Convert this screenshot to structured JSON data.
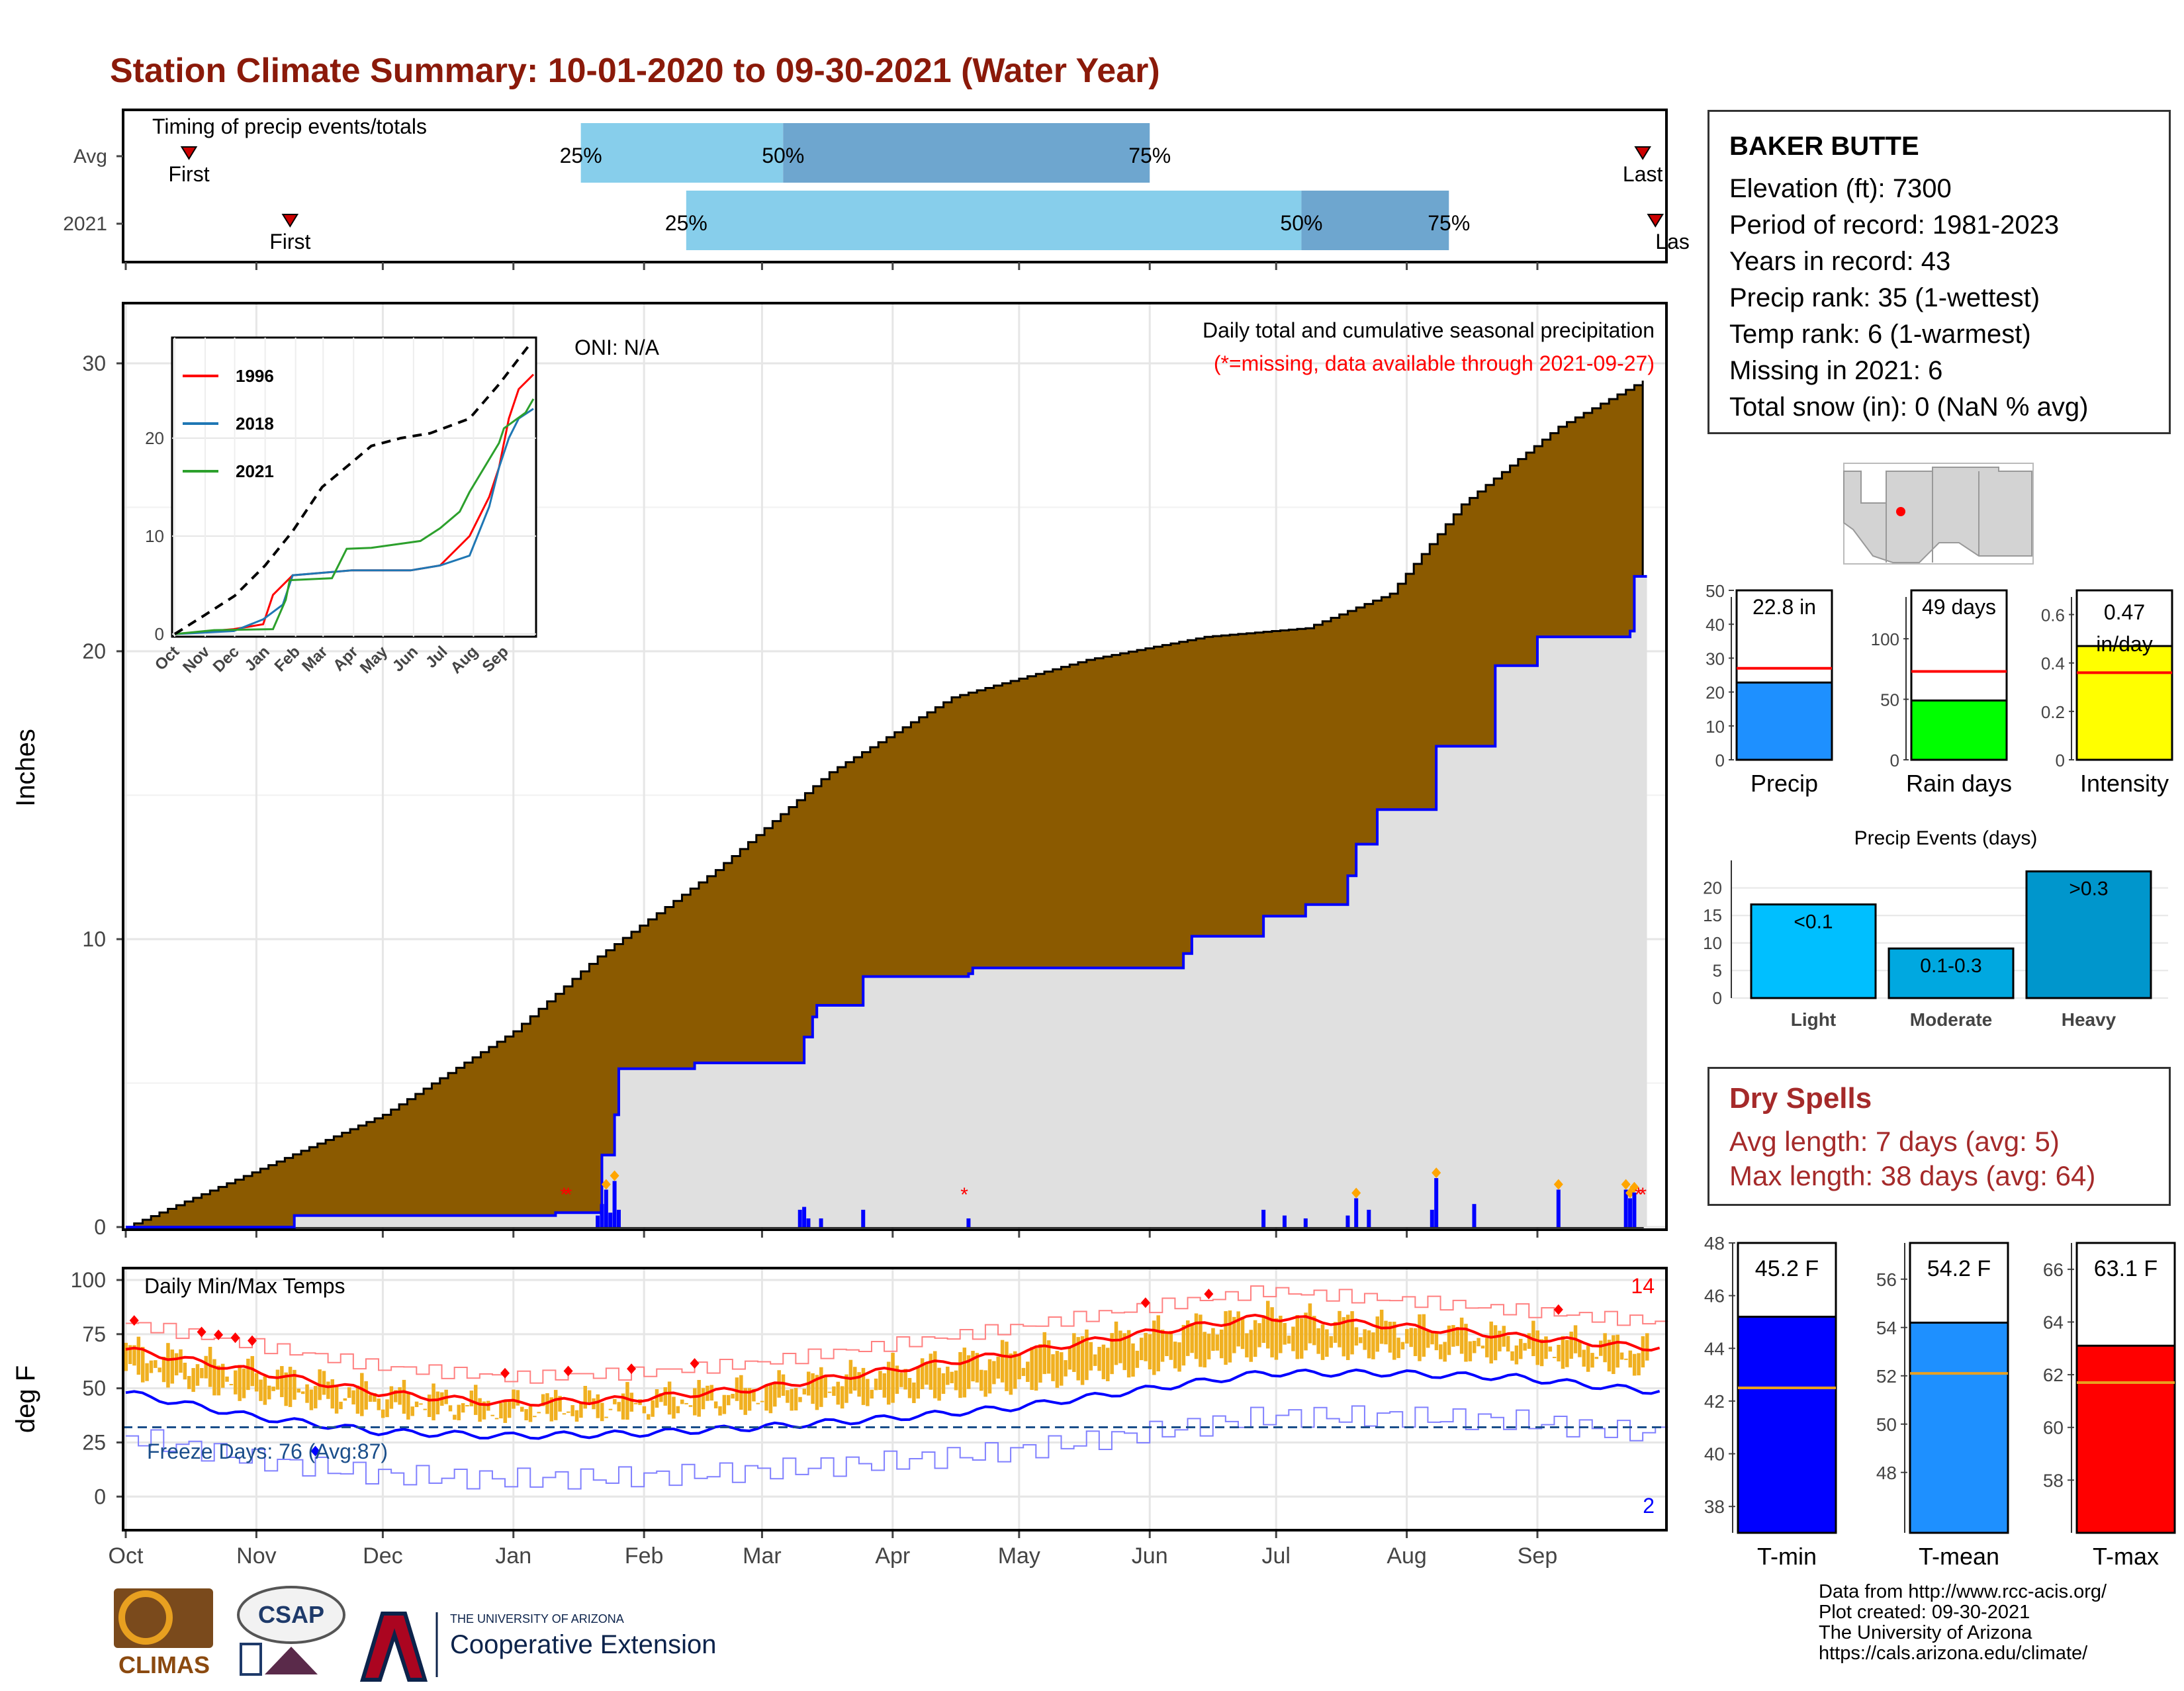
{
  "title": "Station Climate Summary: 10-01-2020 to 09-30-2021 (Water Year)",
  "station": {
    "name": "BAKER BUTTE",
    "lines": [
      "Elevation (ft): 7300",
      "Period of record: 1981-2023",
      "Years in record: 43",
      "Precip rank: 35 (1-wettest)",
      "Temp rank: 6 (1-warmest)",
      "Missing in 2021: 6",
      "Total snow (in): 0 (NaN % avg)"
    ]
  },
  "dry_spells": {
    "title": "Dry Spells",
    "avg": "Avg length: 7 days (avg: 5)",
    "max": "Max length: 38 days (avg: 64)"
  },
  "credits": [
    "Data from http://www.rcc-acis.org/",
    "Plot created: 09-30-2021",
    "The University of Arizona",
    "https://cals.arizona.edu/climate/"
  ],
  "logos": {
    "climas": "CLIMAS",
    "csap": "CSAP",
    "ua_small": "THE UNIVERSITY OF ARIZONA",
    "ua_big": "Cooperative Extension"
  },
  "colors": {
    "title": "#8b1a0a",
    "cum_fill": "#8b5a00",
    "avg_fill": "#e0e0e0",
    "daily_bar": "#0000ff",
    "light_blue": "#87ceeb",
    "steel": "#6ea6cf",
    "temp_bar": "#f0b020",
    "tmax_line": "#ff0000",
    "tmin_line": "#0000ff",
    "inset_1996": "#ff0000",
    "inset_2018": "#1f77b4",
    "inset_2021": "#2ca02c"
  },
  "chart_data": [
    {
      "id": "timing",
      "type": "bar",
      "title": "Timing of precip events/totals",
      "categories": [
        "Avg",
        "2021"
      ],
      "series": [
        {
          "name": "Avg",
          "first": "10-16",
          "q25": "01-17",
          "q50": "03-06",
          "q75": "06-01",
          "last": "09-26"
        },
        {
          "name": "2021",
          "first": "11-09",
          "q25": "02-11",
          "q50": "07-07",
          "q75": "08-11",
          "last": "09-29"
        }
      ],
      "labels": {
        "first": "First",
        "last": "Last",
        "last_2021": "Las",
        "q25": "25%",
        "q50": "50%",
        "q75": "75%"
      }
    },
    {
      "id": "precip",
      "type": "area",
      "title": "Daily total and cumulative seasonal precipitation",
      "subtitle": "(*=missing, data available through 2021-09-27)",
      "annotation": "ONI: N/A",
      "ylabel": "Inches",
      "ylim": [
        0,
        32
      ],
      "yticks": [
        0,
        10,
        20,
        30
      ],
      "xticks": [
        "Oct",
        "Nov",
        "Dec",
        "Jan",
        "Feb",
        "Mar",
        "Apr",
        "May",
        "Jun",
        "Jul",
        "Aug",
        "Sep"
      ],
      "cumulative_avg": {
        "x": [
          0,
          30,
          61,
          92,
          112,
          140,
          167,
          196,
          228,
          256,
          280,
          300,
          317,
          340,
          360
        ],
        "y": [
          0,
          1.9,
          3.9,
          6.8,
          9.4,
          12.4,
          15.8,
          18.4,
          19.7,
          20.5,
          20.8,
          22.0,
          25.1,
          27.8,
          29.4
        ]
      },
      "cumulative_2021": {
        "x": [
          0,
          39,
          40,
          102,
          112,
          113,
          116,
          117,
          135,
          160,
          161,
          163,
          164,
          175,
          200,
          201,
          230,
          251,
          253,
          260,
          270,
          280,
          290,
          292,
          297,
          310,
          311,
          325,
          330,
          335,
          357,
          358,
          361
        ],
        "y": [
          0,
          0,
          0.4,
          0.5,
          0.5,
          2.5,
          3.9,
          5.5,
          5.7,
          5.7,
          6.6,
          7.3,
          7.7,
          8.7,
          8.8,
          9.0,
          9.0,
          9.5,
          10.1,
          10.1,
          10.8,
          11.2,
          12.2,
          13.3,
          14.5,
          14.5,
          16.7,
          19.5,
          19.5,
          20.5,
          20.7,
          22.6,
          22.6
        ]
      },
      "daily_bars": {
        "x": [
          112,
          113,
          114,
          115,
          116,
          117,
          160,
          161,
          162,
          165,
          175,
          200,
          270,
          275,
          280,
          290,
          292,
          295,
          310,
          311,
          320,
          340,
          356,
          357,
          358
        ],
        "y": [
          0.4,
          0.8,
          1.3,
          0.5,
          1.6,
          0.6,
          0.6,
          0.7,
          0.3,
          0.3,
          0.6,
          0.3,
          0.6,
          0.4,
          0.3,
          0.4,
          1.0,
          0.6,
          0.6,
          1.7,
          0.8,
          1.3,
          1.3,
          1.0,
          1.2
        ]
      },
      "missing_x": [
        104,
        105,
        199,
        359,
        360
      ]
    },
    {
      "id": "inset",
      "type": "line",
      "xticks": [
        "Oct",
        "Nov",
        "Dec",
        "Jan",
        "Feb",
        "Mar",
        "Apr",
        "May",
        "Jun",
        "Jul",
        "Aug",
        "Sep"
      ],
      "yticks": [
        0,
        10,
        20
      ],
      "ylim": [
        0,
        30
      ],
      "series": [
        {
          "name": "1996",
          "x": [
            0,
            60,
            90,
            100,
            120,
            180,
            240,
            270,
            300,
            320,
            330,
            340,
            350,
            365
          ],
          "y": [
            0,
            0.5,
            1,
            4,
            6,
            6.5,
            6.5,
            7,
            10,
            14,
            17,
            22,
            25,
            26.5
          ]
        },
        {
          "name": "2018",
          "x": [
            0,
            60,
            90,
            110,
            120,
            180,
            240,
            270,
            300,
            320,
            330,
            340,
            350,
            365
          ],
          "y": [
            0,
            0.3,
            1.5,
            3,
            6,
            6.5,
            6.5,
            7,
            8,
            13,
            17,
            20,
            22,
            23
          ]
        },
        {
          "name": "2021",
          "x": [
            0,
            40,
            100,
            113,
            117,
            160,
            175,
            200,
            250,
            270,
            290,
            300,
            330,
            335,
            357,
            365
          ],
          "y": [
            0,
            0.4,
            0.5,
            3.5,
            5.5,
            5.7,
            8.7,
            8.8,
            9.5,
            10.8,
            12.5,
            14.5,
            19.5,
            21,
            22.6,
            24
          ]
        },
        {
          "name": "avg",
          "x": [
            0,
            30,
            61,
            92,
            120,
            150,
            180,
            200,
            230,
            260,
            300,
            330,
            360
          ],
          "y": [
            0,
            1.9,
            3.9,
            7,
            10.5,
            15,
            17.5,
            19.2,
            20,
            20.5,
            22,
            25.5,
            29.4
          ]
        }
      ]
    },
    {
      "id": "temps",
      "type": "line",
      "title": "Daily Min/Max Temps",
      "ylabel": "deg F",
      "ylim": [
        -10,
        100
      ],
      "yticks": [
        0,
        25,
        50,
        75,
        100
      ],
      "xticks": [
        "Oct",
        "Nov",
        "Dec",
        "Jan",
        "Feb",
        "Mar",
        "Apr",
        "May",
        "Jun",
        "Jul",
        "Aug",
        "Sep"
      ],
      "avg_tmax": {
        "x": [
          0,
          30,
          60,
          90,
          120,
          150,
          180,
          210,
          240,
          270,
          300,
          330,
          360
        ],
        "y": [
          68,
          58,
          48,
          43,
          45,
          50,
          58,
          66,
          75,
          83,
          79,
          74,
          69
        ]
      },
      "avg_tmin": {
        "x": [
          0,
          30,
          60,
          90,
          120,
          150,
          180,
          210,
          240,
          270,
          300,
          330,
          360
        ],
        "y": [
          48,
          37,
          30,
          28,
          29,
          32,
          36,
          41,
          49,
          57,
          57,
          55,
          49
        ]
      },
      "freeze_line": 32,
      "freeze_label": "Freeze Days: 76 (Avg:87)",
      "record_high_count": "14",
      "record_low_count": "2"
    },
    {
      "id": "precip_stats",
      "type": "bar",
      "panels": [
        {
          "label": "Precip",
          "value": 22.8,
          "avg": 27,
          "text": "22.8 in",
          "ymax": 50,
          "yticks": [
            0,
            10,
            20,
            30,
            40,
            50
          ]
        },
        {
          "label": "Rain days",
          "value": 49,
          "avg": 73,
          "text": "49 days",
          "ymax": 140,
          "yticks": [
            0,
            50,
            100
          ]
        },
        {
          "label": "Intensity",
          "value": 0.47,
          "avg": 0.36,
          "text": "0.47 in/day",
          "ymax": 0.7,
          "yticks": [
            0.0,
            0.2,
            0.4,
            0.6
          ]
        }
      ]
    },
    {
      "id": "precip_events",
      "type": "bar",
      "title": "Precip Events (days)",
      "categories": [
        "Light",
        "Moderate",
        "Heavy"
      ],
      "values": [
        17,
        9,
        23
      ],
      "bar_labels": [
        "<0.1",
        "0.1-0.3",
        ">0.3"
      ],
      "yticks": [
        0,
        5,
        10,
        15,
        20
      ]
    },
    {
      "id": "temp_stats",
      "type": "bar",
      "panels": [
        {
          "label": "T-min",
          "value": 45.2,
          "avg": 42.5,
          "text": "45.2 F",
          "ylim": [
            37,
            48
          ],
          "yticks": [
            38,
            40,
            42,
            44,
            46,
            48
          ]
        },
        {
          "label": "T-mean",
          "value": 54.2,
          "avg": 52.1,
          "text": "54.2 F",
          "ylim": [
            45.5,
            57.5
          ],
          "yticks": [
            48,
            50,
            52,
            54,
            56
          ]
        },
        {
          "label": "T-max",
          "value": 63.1,
          "avg": 61.7,
          "text": "63.1 F",
          "ylim": [
            56,
            67
          ],
          "yticks": [
            58,
            60,
            62,
            64,
            66
          ]
        }
      ]
    }
  ]
}
